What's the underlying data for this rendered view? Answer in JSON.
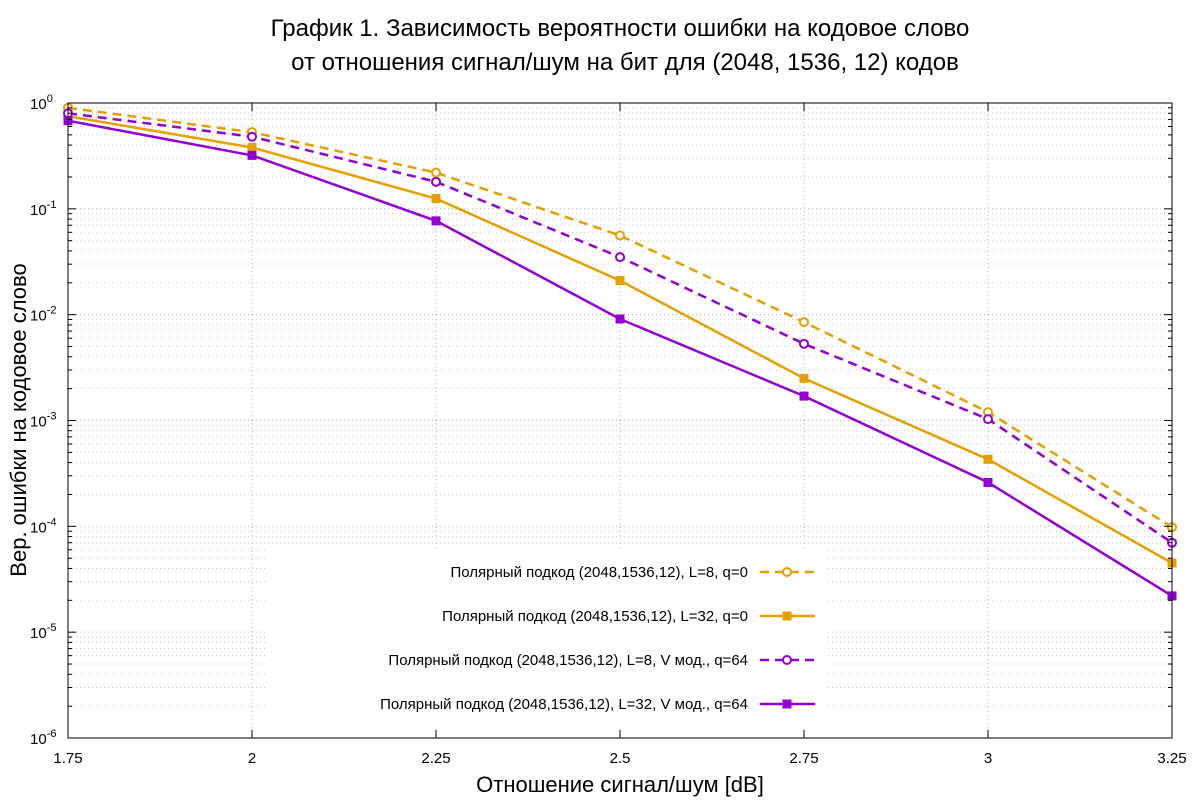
{
  "chart_data": {
    "type": "line",
    "title": [
      "График 1. Зависимость вероятности ошибки на кодовое слово",
      "от отношения сигнал/шум на бит для (2048, 1536, 12) кодов"
    ],
    "xlabel": "Отношение сигнал/шум [dB]",
    "ylabel": "Вер. ошибки на кодовое слово",
    "xlim": [
      1.75,
      3.25
    ],
    "ylim": [
      1e-06,
      1
    ],
    "yscale": "log",
    "grid": true,
    "legend_position": "bottom-right",
    "x_ticks": [
      "1.75",
      "2",
      "2.25",
      "2.5",
      "2.75",
      "3",
      "3.25"
    ],
    "y_ticks": [
      {
        "base": "10",
        "exp": "0"
      },
      {
        "base": "10",
        "exp": "-1"
      },
      {
        "base": "10",
        "exp": "-2"
      },
      {
        "base": "10",
        "exp": "-3"
      },
      {
        "base": "10",
        "exp": "-4"
      },
      {
        "base": "10",
        "exp": "-5"
      },
      {
        "base": "10",
        "exp": "-6"
      }
    ],
    "x": [
      1.75,
      2.0,
      2.25,
      2.5,
      2.75,
      3.0,
      3.25
    ],
    "series": [
      {
        "name": "Полярный подкод (2048,1536,12), L=8, q=0",
        "color": "#e69f00",
        "dash": true,
        "marker": "open-circle",
        "values": [
          0.9,
          0.53,
          0.22,
          0.056,
          0.0085,
          0.0012,
          9.8e-05
        ]
      },
      {
        "name": "Полярный подкод (2048,1536,12), L=32, q=0",
        "color": "#e69f00",
        "dash": false,
        "marker": "filled-square",
        "values": [
          0.75,
          0.38,
          0.125,
          0.021,
          0.0025,
          0.00043,
          4.5e-05
        ]
      },
      {
        "name": "Полярный подкод (2048,1536,12), L=8, V мод., q=64",
        "color": "#9400d3",
        "dash": true,
        "marker": "open-circle",
        "values": [
          0.8,
          0.48,
          0.18,
          0.035,
          0.0053,
          0.00103,
          7e-05
        ]
      },
      {
        "name": "Полярный подкод (2048,1536,12), L=32, V мод., q=64",
        "color": "#9400d3",
        "dash": false,
        "marker": "filled-square",
        "values": [
          0.68,
          0.32,
          0.077,
          0.0091,
          0.0017,
          0.00026,
          2.2e-05
        ]
      }
    ]
  }
}
